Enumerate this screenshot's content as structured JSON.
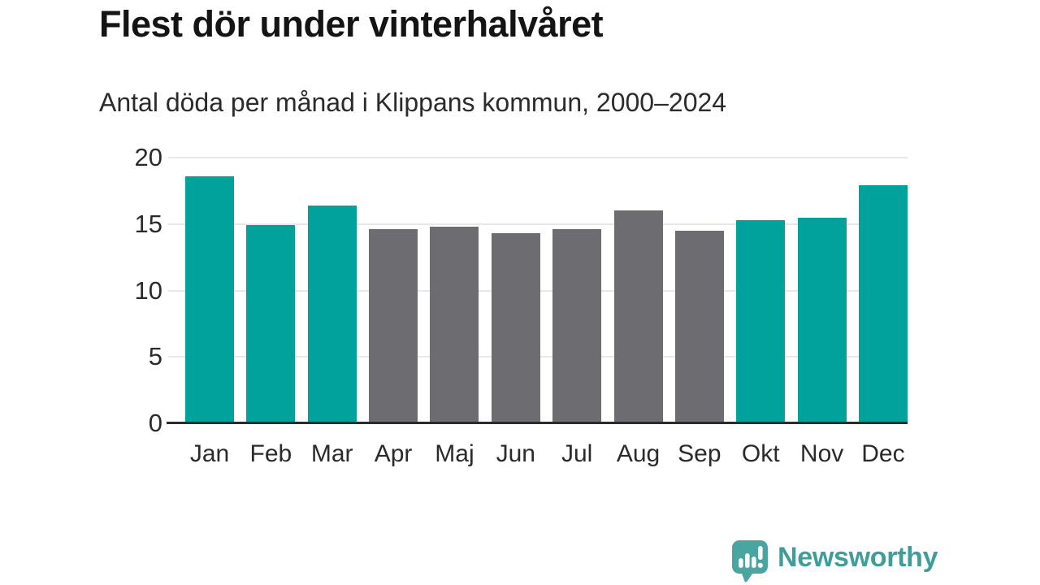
{
  "page": {
    "title": "Flest dör under vinterhalvåret",
    "subtitle": "Antal döda per månad i Klippans kommun, 2000–2024"
  },
  "chart_data": {
    "type": "bar",
    "title": "Flest dör under vinterhalvåret",
    "subtitle": "Antal döda per månad i Klippans kommun, 2000–2024",
    "categories": [
      "Jan",
      "Feb",
      "Mar",
      "Apr",
      "Maj",
      "Jun",
      "Jul",
      "Aug",
      "Sep",
      "Okt",
      "Nov",
      "Dec"
    ],
    "values": [
      18.6,
      14.9,
      16.4,
      14.6,
      14.8,
      14.3,
      14.6,
      16.0,
      14.5,
      15.3,
      15.5,
      17.9
    ],
    "highlighted_months": [
      true,
      true,
      true,
      false,
      false,
      false,
      false,
      false,
      false,
      true,
      true,
      true
    ],
    "xlabel": "",
    "ylabel": "",
    "ylim": [
      0,
      20
    ],
    "yticks": [
      0,
      5,
      10,
      15,
      20
    ],
    "grid": true,
    "legend_position": "none",
    "colors": {
      "highlight": "#00a29b",
      "default": "#6d6c71",
      "gridline": "#e8e8e8",
      "axis": "#2b2b2b",
      "text": "#2b2b2b"
    }
  },
  "branding": {
    "logo_text": "Newsworthy",
    "logo_icon": "speech-bubble-bar-chart-icon",
    "logo_icon_color": "#4aa4a0",
    "logo_text_color": "#3f9e9a"
  }
}
